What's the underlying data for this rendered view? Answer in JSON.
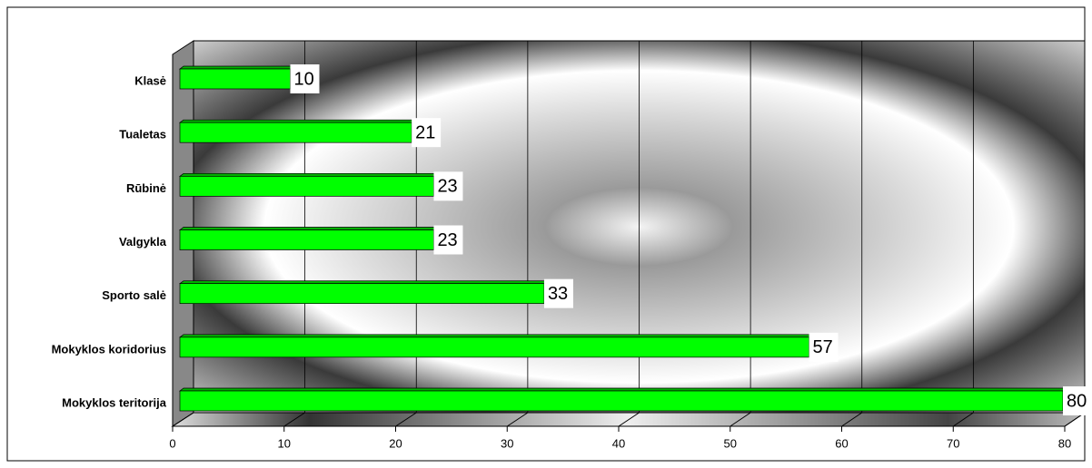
{
  "chart_data": {
    "type": "bar",
    "orientation": "horizontal",
    "categories": [
      "Klasė",
      "Tualetas",
      "Rūbinė",
      "Valgykla",
      "Sporto salė",
      "Mokyklos koridorius",
      "Mokyklos teritorija"
    ],
    "values": [
      10,
      21,
      23,
      23,
      33,
      57,
      80
    ],
    "color": "#00ff00",
    "xlim": [
      0,
      80
    ],
    "xticks": [
      0,
      10,
      20,
      30,
      40,
      50,
      60,
      70,
      80
    ],
    "grid": true
  }
}
